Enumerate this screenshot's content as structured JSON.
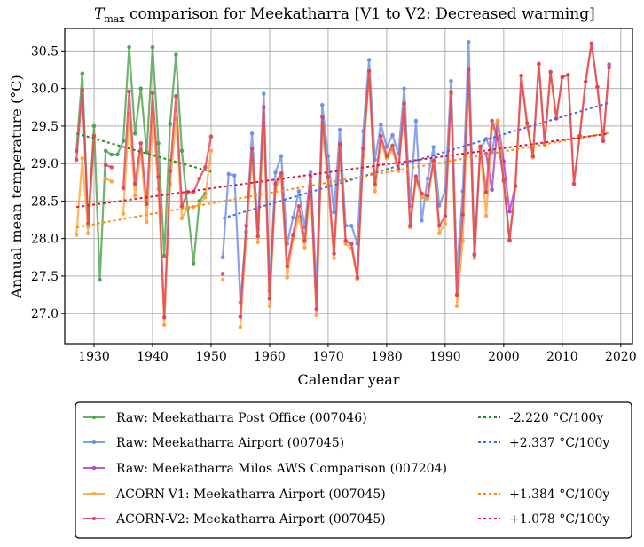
{
  "chart_data": {
    "type": "line",
    "title_main": "T",
    "title_sub": "max",
    "title_rest": " comparison for Meekatharra   [V1 to V2: Decreased warming]",
    "xlabel": "Calendar year",
    "ylabel": "Annual mean temperature (°C)",
    "xlim": [
      1925,
      2022
    ],
    "ylim": [
      26.6,
      30.8
    ],
    "xticks": [
      1930,
      1940,
      1950,
      1960,
      1970,
      1980,
      1990,
      2000,
      2010,
      2020
    ],
    "yticks": [
      27.0,
      27.5,
      28.0,
      28.5,
      29.0,
      29.5,
      30.0,
      30.5
    ],
    "ytick_labels": [
      "27.0",
      "27.5",
      "28.0",
      "28.5",
      "29.0",
      "29.5",
      "30.0",
      "30.5"
    ],
    "grid": true,
    "legend_position": "bottom",
    "series": [
      {
        "name": "Raw: Meekatharra Post Office (007046)",
        "color": "#4aa04a",
        "points": [
          [
            1927,
            29.17
          ],
          [
            1928,
            30.2
          ],
          [
            1929,
            28.17
          ],
          [
            1930,
            29.5
          ],
          [
            1931,
            27.45
          ],
          [
            1932,
            29.17
          ],
          [
            1933,
            29.12
          ],
          [
            1934,
            29.12
          ],
          [
            1935,
            29.3
          ],
          [
            1936,
            30.55
          ],
          [
            1937,
            29.4
          ],
          [
            1938,
            30.0
          ],
          [
            1939,
            29.15
          ],
          [
            1940,
            30.55
          ],
          [
            1941,
            29.27
          ],
          [
            1942,
            27.77
          ],
          [
            1943,
            29.53
          ],
          [
            1944,
            30.45
          ],
          [
            1945,
            29.17
          ],
          [
            1946,
            28.4
          ],
          [
            1947,
            27.67
          ],
          [
            1948,
            28.5
          ],
          [
            1949,
            28.6
          ]
        ]
      },
      {
        "name": "Raw: Meekatharra Airport (007045)",
        "color": "#6a8ee6",
        "points": [
          [
            1952,
            27.75
          ],
          [
            1953,
            28.86
          ],
          [
            1954,
            28.84
          ],
          [
            1955,
            27.15
          ],
          [
            1956,
            28.09
          ],
          [
            1957,
            29.4
          ],
          [
            1958,
            28.13
          ],
          [
            1959,
            29.93
          ],
          [
            1960,
            27.3
          ],
          [
            1961,
            28.88
          ],
          [
            1962,
            29.1
          ],
          [
            1963,
            27.93
          ],
          [
            1964,
            28.28
          ],
          [
            1965,
            28.63
          ],
          [
            1966,
            28.15
          ],
          [
            1967,
            28.88
          ],
          [
            1968,
            27.36
          ],
          [
            1969,
            29.78
          ],
          [
            1970,
            29.1
          ],
          [
            1971,
            28.35
          ],
          [
            1972,
            29.45
          ],
          [
            1973,
            28.17
          ],
          [
            1974,
            28.17
          ],
          [
            1975,
            27.93
          ],
          [
            1976,
            29.43
          ],
          [
            1977,
            30.38
          ],
          [
            1978,
            29.05
          ],
          [
            1979,
            29.52
          ],
          [
            1980,
            29.22
          ],
          [
            1981,
            29.38
          ],
          [
            1982,
            29.13
          ],
          [
            1983,
            30.0
          ],
          [
            1984,
            28.43
          ],
          [
            1985,
            29.57
          ],
          [
            1986,
            28.24
          ],
          [
            1987,
            28.8
          ],
          [
            1988,
            29.22
          ],
          [
            1989,
            28.44
          ],
          [
            1990,
            28.64
          ],
          [
            1991,
            30.1
          ],
          [
            1992,
            27.55
          ],
          [
            1993,
            28.63
          ],
          [
            1994,
            30.62
          ],
          [
            1995,
            27.8
          ],
          [
            1996,
            29.2
          ],
          [
            1997,
            29.33
          ],
          [
            1998,
            29.15
          ],
          [
            1999,
            29.57
          ],
          [
            2000,
            28.76
          ],
          [
            2001,
            27.97
          ]
        ]
      },
      {
        "name": "Raw: Meekatharra Milos AWS Comparison (007204)",
        "color": "#a640d8",
        "points": [
          [
            1997,
            29.13
          ],
          [
            1998,
            28.65
          ],
          [
            1999,
            29.57
          ],
          [
            2000,
            29.03
          ],
          [
            2001,
            28.36
          ],
          [
            2002,
            28.7
          ],
          [
            2018,
            30.32
          ]
        ]
      },
      {
        "name": "ACORN-V1: Meekatharra Airport (007045)",
        "color": "#ffa23a",
        "points": [
          [
            1927,
            28.05
          ],
          [
            1928,
            29.07
          ],
          [
            1929,
            28.07
          ],
          [
            1930,
            29.35
          ],
          [
            1932,
            28.8
          ],
          [
            1933,
            28.76
          ],
          [
            1935,
            28.33
          ],
          [
            1936,
            29.66
          ],
          [
            1937,
            28.57
          ],
          [
            1938,
            29.18
          ],
          [
            1939,
            28.22
          ],
          [
            1940,
            29.66
          ],
          [
            1941,
            28.66
          ],
          [
            1942,
            26.85
          ],
          [
            1943,
            28.73
          ],
          [
            1944,
            29.6
          ],
          [
            1945,
            28.27
          ],
          [
            1946,
            28.42
          ],
          [
            1947,
            28.42
          ],
          [
            1948,
            28.45
          ],
          [
            1949,
            28.55
          ],
          [
            1950,
            29.17
          ],
          [
            1952,
            27.45
          ],
          [
            1955,
            26.82
          ],
          [
            1956,
            28.0
          ],
          [
            1957,
            29.08
          ],
          [
            1958,
            27.95
          ],
          [
            1959,
            29.62
          ],
          [
            1960,
            27.1
          ],
          [
            1961,
            28.66
          ],
          [
            1962,
            28.82
          ],
          [
            1963,
            27.48
          ],
          [
            1964,
            28.0
          ],
          [
            1965,
            28.29
          ],
          [
            1966,
            27.88
          ],
          [
            1967,
            28.73
          ],
          [
            1968,
            26.98
          ],
          [
            1969,
            29.5
          ],
          [
            1970,
            28.71
          ],
          [
            1971,
            27.74
          ],
          [
            1972,
            29.17
          ],
          [
            1973,
            27.93
          ],
          [
            1974,
            27.87
          ],
          [
            1975,
            27.46
          ],
          [
            1976,
            29.1
          ],
          [
            1977,
            30.18
          ],
          [
            1978,
            28.63
          ],
          [
            1979,
            29.28
          ],
          [
            1980,
            29.07
          ],
          [
            1981,
            29.18
          ],
          [
            1982,
            28.9
          ],
          [
            1983,
            29.75
          ],
          [
            1984,
            28.15
          ],
          [
            1985,
            28.78
          ],
          [
            1986,
            28.55
          ],
          [
            1987,
            28.53
          ],
          [
            1988,
            29.0
          ],
          [
            1989,
            28.07
          ],
          [
            1990,
            28.2
          ],
          [
            1991,
            29.92
          ],
          [
            1992,
            27.1
          ],
          [
            1993,
            27.97
          ],
          [
            1994,
            30.12
          ],
          [
            1995,
            27.74
          ],
          [
            1996,
            29.2
          ],
          [
            1997,
            28.3
          ],
          [
            1998,
            29.47
          ],
          [
            1999,
            29.57
          ],
          [
            2000,
            28.76
          ],
          [
            2001,
            27.97
          ],
          [
            2002,
            28.7
          ],
          [
            2003,
            30.17
          ],
          [
            2004,
            29.5
          ],
          [
            2005,
            29.08
          ],
          [
            2006,
            30.32
          ],
          [
            2007,
            29.25
          ],
          [
            2008,
            30.22
          ],
          [
            2009,
            29.6
          ],
          [
            2010,
            30.15
          ],
          [
            2011,
            30.18
          ],
          [
            2012,
            28.73
          ],
          [
            2013,
            29.37
          ],
          [
            2014,
            30.09
          ],
          [
            2015,
            30.6
          ],
          [
            2016,
            30.02
          ],
          [
            2017,
            29.3
          ],
          [
            2018,
            30.28
          ]
        ]
      },
      {
        "name": "ACORN-V2: Meekatharra Airport (007045)",
        "color": "#e0405a",
        "points": [
          [
            1927,
            29.05
          ],
          [
            1928,
            29.98
          ],
          [
            1929,
            28.2
          ],
          [
            1930,
            29.37
          ],
          [
            1932,
            28.98
          ],
          [
            1933,
            28.95
          ],
          [
            1935,
            28.67
          ],
          [
            1936,
            29.96
          ],
          [
            1937,
            28.73
          ],
          [
            1938,
            29.27
          ],
          [
            1939,
            28.46
          ],
          [
            1940,
            29.94
          ],
          [
            1941,
            28.82
          ],
          [
            1942,
            26.95
          ],
          [
            1943,
            28.9
          ],
          [
            1944,
            29.9
          ],
          [
            1945,
            28.43
          ],
          [
            1946,
            28.62
          ],
          [
            1947,
            28.62
          ],
          [
            1948,
            28.8
          ],
          [
            1949,
            28.95
          ],
          [
            1950,
            29.36
          ],
          [
            1952,
            27.53
          ],
          [
            1955,
            26.96
          ],
          [
            1956,
            28.17
          ],
          [
            1957,
            29.2
          ],
          [
            1958,
            28.03
          ],
          [
            1959,
            29.75
          ],
          [
            1960,
            27.2
          ],
          [
            1961,
            28.73
          ],
          [
            1962,
            28.87
          ],
          [
            1963,
            27.63
          ],
          [
            1964,
            28.05
          ],
          [
            1965,
            28.43
          ],
          [
            1966,
            27.97
          ],
          [
            1967,
            28.83
          ],
          [
            1968,
            27.06
          ],
          [
            1969,
            29.62
          ],
          [
            1970,
            28.82
          ],
          [
            1971,
            27.8
          ],
          [
            1972,
            29.26
          ],
          [
            1973,
            27.97
          ],
          [
            1974,
            27.93
          ],
          [
            1975,
            27.48
          ],
          [
            1976,
            29.2
          ],
          [
            1977,
            30.23
          ],
          [
            1978,
            28.72
          ],
          [
            1979,
            29.37
          ],
          [
            1980,
            29.1
          ],
          [
            1981,
            29.24
          ],
          [
            1982,
            28.93
          ],
          [
            1983,
            29.8
          ],
          [
            1984,
            28.17
          ],
          [
            1985,
            28.83
          ],
          [
            1986,
            28.6
          ],
          [
            1987,
            28.57
          ],
          [
            1988,
            29.04
          ],
          [
            1989,
            28.17
          ],
          [
            1990,
            28.3
          ],
          [
            1991,
            29.95
          ],
          [
            1992,
            27.25
          ],
          [
            1993,
            28.32
          ],
          [
            1994,
            30.25
          ],
          [
            1995,
            27.78
          ],
          [
            1996,
            29.23
          ],
          [
            1997,
            28.62
          ],
          [
            1998,
            29.57
          ],
          [
            1999,
            29.33
          ],
          [
            2000,
            28.78
          ],
          [
            2001,
            27.98
          ],
          [
            2002,
            28.7
          ],
          [
            2003,
            30.17
          ],
          [
            2004,
            29.54
          ],
          [
            2005,
            29.1
          ],
          [
            2006,
            30.33
          ],
          [
            2007,
            29.26
          ],
          [
            2008,
            30.22
          ],
          [
            2009,
            29.6
          ],
          [
            2010,
            30.15
          ],
          [
            2011,
            30.18
          ],
          [
            2012,
            28.73
          ],
          [
            2013,
            29.37
          ],
          [
            2014,
            30.09
          ],
          [
            2015,
            30.6
          ],
          [
            2016,
            30.02
          ],
          [
            2017,
            29.3
          ],
          [
            2018,
            30.28
          ]
        ]
      }
    ],
    "trends": [
      {
        "label": "-2.220 °C/100y",
        "color": "#228b22",
        "x": [
          1927,
          1950
        ],
        "y": [
          29.4,
          28.89
        ]
      },
      {
        "label": "+2.337 °C/100y",
        "color": "#4169e1",
        "x": [
          1952,
          2018
        ],
        "y": [
          28.27,
          29.81
        ]
      },
      {
        "label": "+1.384 °C/100y",
        "color": "#ff8c00",
        "x": [
          1927,
          2018
        ],
        "y": [
          28.15,
          29.41
        ]
      },
      {
        "label": "+1.078 °C/100y",
        "color": "#dc143c",
        "x": [
          1927,
          2018
        ],
        "y": [
          28.42,
          29.4
        ]
      }
    ]
  }
}
